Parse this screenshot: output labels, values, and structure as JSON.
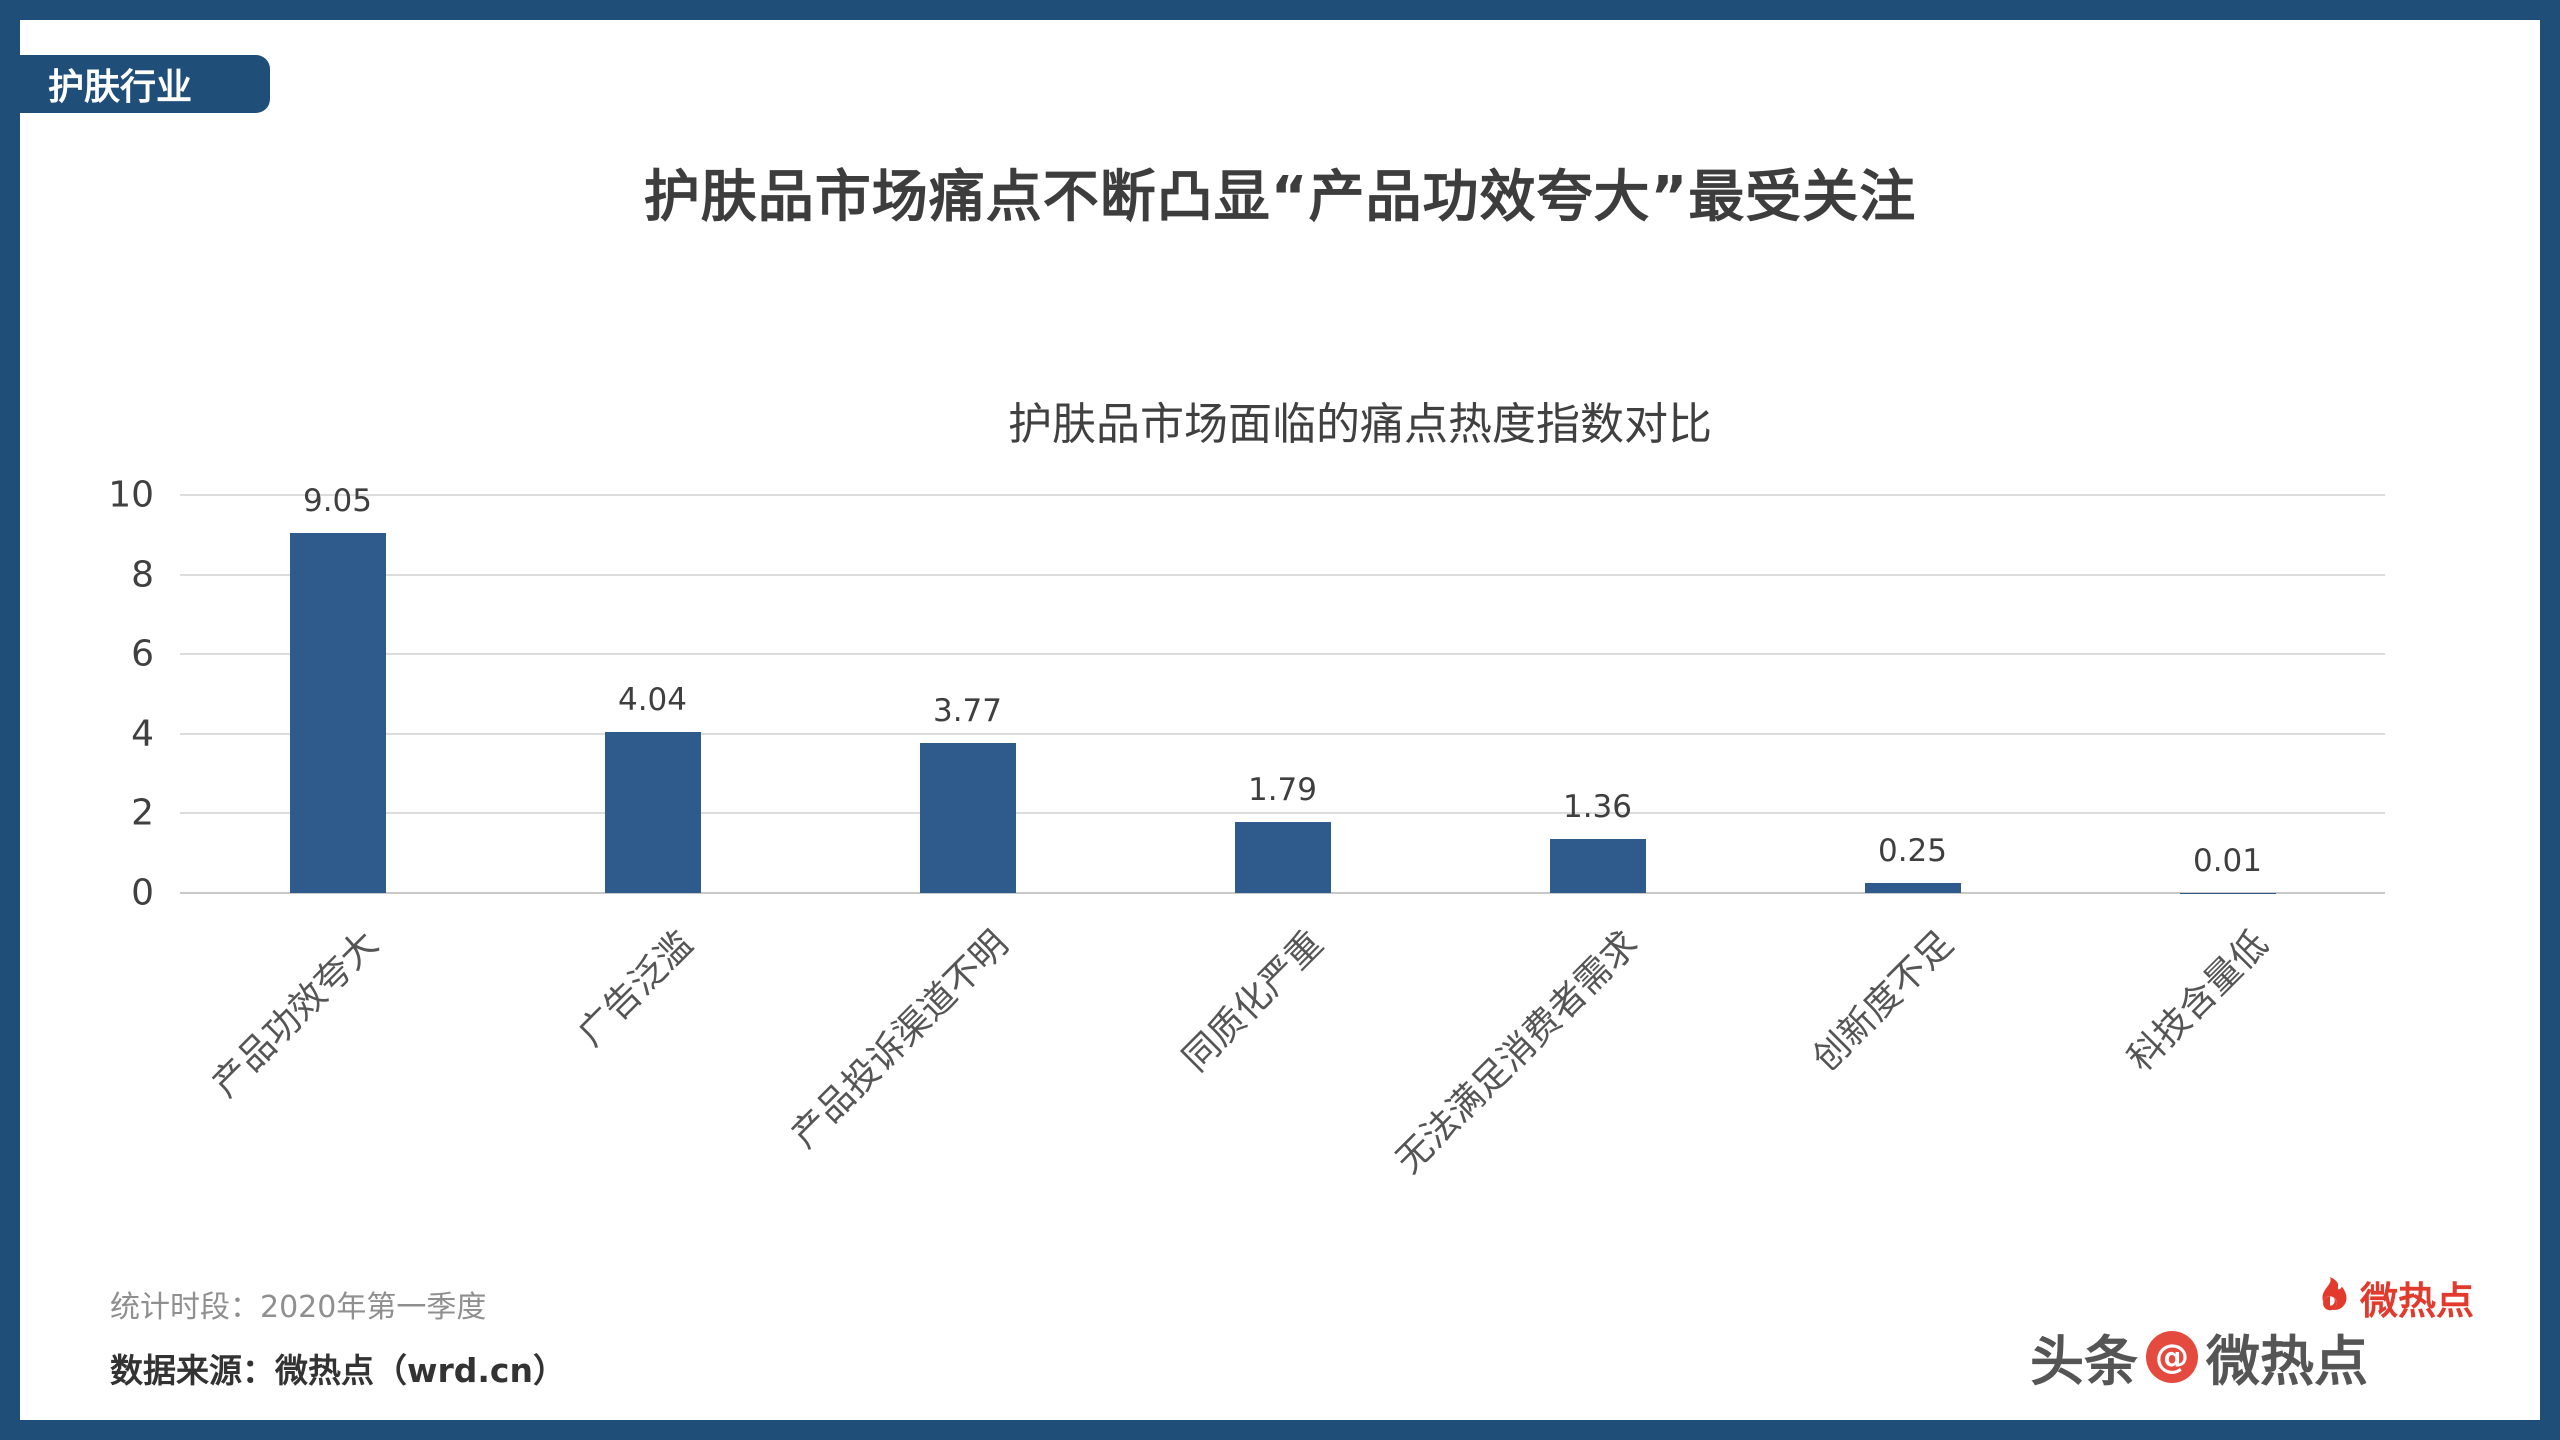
{
  "page": {
    "tab_label": "护肤行业",
    "title": "护肤品市场痛点不断凸显“产品功效夸大”最受关注"
  },
  "chart_data": {
    "type": "bar",
    "title": "护肤品市场面临的痛点热度指数对比",
    "categories": [
      "产品功效夸大",
      "广告泛滥",
      "产品投诉渠道不明",
      "同质化严重",
      "无法满足消费者需求",
      "创新度不足",
      "科技含量低"
    ],
    "values": [
      9.05,
      4.04,
      3.77,
      1.79,
      1.36,
      0.25,
      0.01
    ],
    "ylim": [
      0,
      10
    ],
    "yticks": [
      0,
      2,
      4,
      6,
      8,
      10
    ],
    "grid": true,
    "legend": false,
    "bar_color": "#2f5b8c",
    "xlabel": "",
    "ylabel": ""
  },
  "footer": {
    "period": "统计时段：2020年第一季度",
    "source": "数据来源：微热点（wrd.cn）"
  },
  "watermark": {
    "red_brand": "微热点",
    "gray_left": "头条",
    "at_symbol": "@",
    "gray_right": "微热点"
  },
  "colors": {
    "frame": "#1f4e79",
    "bar": "#2f5b8c",
    "logo_red": "#e23b2e"
  }
}
